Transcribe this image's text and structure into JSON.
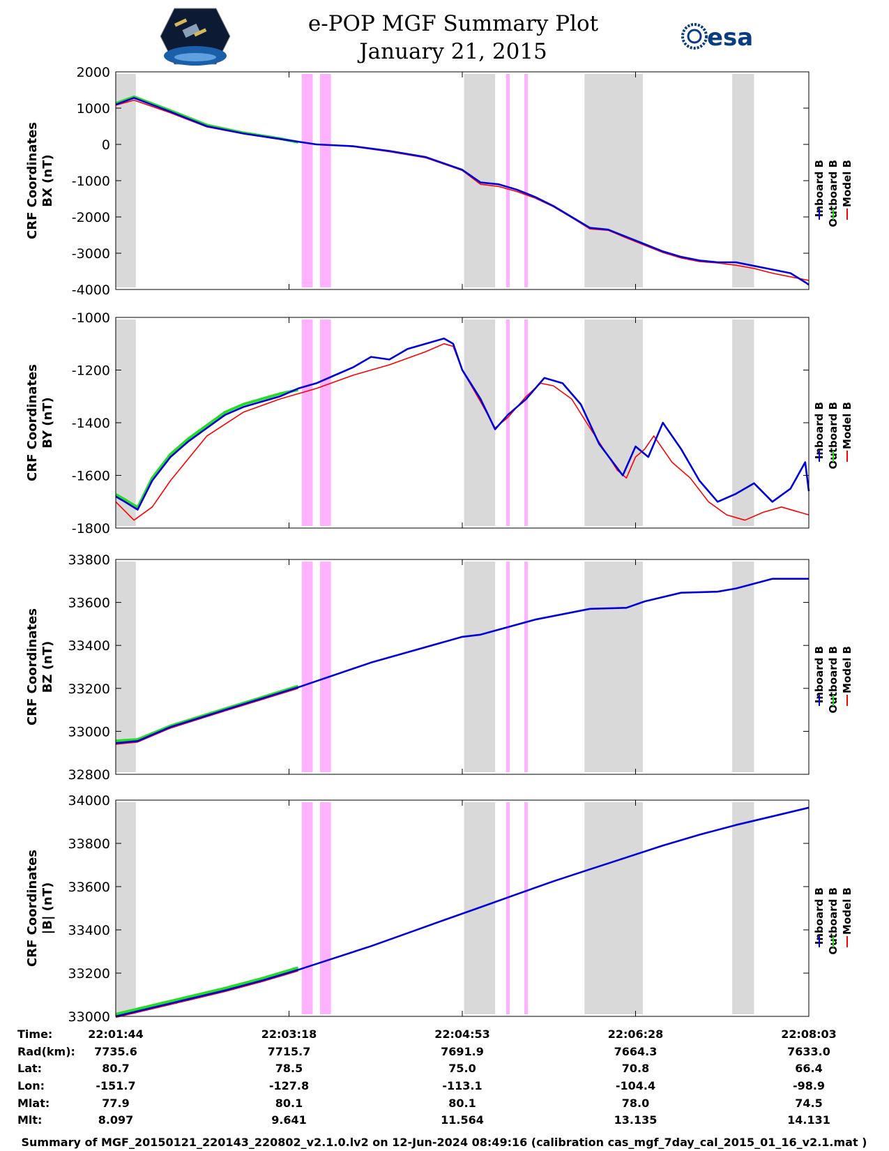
{
  "header": {
    "title": "e-POP MGF Summary Plot",
    "date": "January 21, 2015",
    "logo_left_icon": "cassiope-satellite-logo",
    "logo_right_text": "esa",
    "logo_right_icon": "esa-logo"
  },
  "colors": {
    "inboard": "#0000dd",
    "outboard": "#22dd22",
    "model": "#ff0000",
    "gray_band": "#d9d9d9",
    "pink_band": "#ffb3ff"
  },
  "legend": [
    "Inboard B",
    "Outboard B",
    "Model B"
  ],
  "chart_data": [
    {
      "type": "line",
      "ylabel_line1": "CRF Coordinates",
      "ylabel_line2": "BX (nT)",
      "ylim": [
        -4000,
        2000
      ],
      "yticks": [
        "2000",
        "1000",
        "0",
        "-1000",
        "-2000",
        "-3000",
        "-4000"
      ],
      "ytick_values": [
        2000,
        1000,
        0,
        -1000,
        -2000,
        -3000,
        -4000
      ],
      "xlim": [
        0,
        380
      ],
      "series": [
        {
          "name": "Inboard B",
          "x": [
            0,
            10,
            30,
            50,
            70,
            90,
            110,
            130,
            150,
            170,
            190,
            200,
            210,
            220,
            230,
            240,
            250,
            260,
            270,
            280,
            290,
            300,
            310,
            320,
            330,
            340,
            350,
            360,
            370,
            378,
            380
          ],
          "values": [
            1100,
            1280,
            900,
            500,
            300,
            150,
            0,
            -50,
            -180,
            -350,
            -700,
            -1050,
            -1100,
            -1250,
            -1450,
            -1700,
            -2000,
            -2300,
            -2350,
            -2550,
            -2750,
            -2950,
            -3100,
            -3200,
            -3250,
            -3250,
            -3350,
            -3450,
            -3550,
            -3800,
            -3870
          ]
        },
        {
          "name": "Outboard B",
          "x": [
            0,
            10,
            30,
            50,
            70,
            90,
            100
          ],
          "values": [
            1130,
            1310,
            930,
            530,
            320,
            160,
            60
          ]
        },
        {
          "name": "Model B",
          "x": [
            0,
            10,
            30,
            50,
            70,
            90,
            110,
            130,
            150,
            170,
            190,
            200,
            210,
            220,
            230,
            240,
            250,
            260,
            270,
            280,
            290,
            300,
            310,
            320,
            330,
            340,
            350,
            360,
            370,
            380
          ],
          "values": [
            1080,
            1220,
            870,
            480,
            290,
            140,
            10,
            -60,
            -200,
            -370,
            -720,
            -1100,
            -1160,
            -1300,
            -1480,
            -1720,
            -2020,
            -2330,
            -2370,
            -2580,
            -2780,
            -2980,
            -3130,
            -3230,
            -3270,
            -3330,
            -3420,
            -3550,
            -3650,
            -3750
          ]
        }
      ]
    },
    {
      "type": "line",
      "ylabel_line1": "CRF Coordinates",
      "ylabel_line2": "BY (nT)",
      "ylim": [
        -1800,
        -1000
      ],
      "yticks": [
        "-1000",
        "-1200",
        "-1400",
        "-1600",
        "-1800"
      ],
      "ytick_values": [
        -1000,
        -1200,
        -1400,
        -1600,
        -1800
      ],
      "xlim": [
        0,
        380
      ],
      "series": [
        {
          "name": "Inboard B",
          "x": [
            0,
            5,
            12,
            20,
            30,
            40,
            50,
            60,
            70,
            80,
            90,
            100,
            110,
            120,
            130,
            140,
            150,
            160,
            170,
            180,
            185,
            190,
            200,
            208,
            215,
            225,
            235,
            245,
            255,
            265,
            278,
            285,
            292,
            300,
            310,
            320,
            330,
            340,
            350,
            360,
            370,
            378,
            380
          ],
          "values": [
            -1680,
            -1700,
            -1730,
            -1620,
            -1530,
            -1470,
            -1420,
            -1370,
            -1340,
            -1320,
            -1300,
            -1270,
            -1250,
            -1220,
            -1190,
            -1150,
            -1160,
            -1120,
            -1100,
            -1080,
            -1100,
            -1200,
            -1310,
            -1425,
            -1370,
            -1310,
            -1230,
            -1250,
            -1330,
            -1480,
            -1600,
            -1490,
            -1530,
            -1400,
            -1500,
            -1620,
            -1700,
            -1670,
            -1630,
            -1700,
            -1650,
            -1550,
            -1660
          ]
        },
        {
          "name": "Outboard B",
          "x": [
            0,
            5,
            12,
            20,
            30,
            40,
            50,
            60,
            70,
            80,
            90,
            100
          ],
          "values": [
            -1672,
            -1692,
            -1722,
            -1610,
            -1520,
            -1460,
            -1410,
            -1360,
            -1330,
            -1310,
            -1290,
            -1275
          ]
        },
        {
          "name": "Model B",
          "x": [
            0,
            10,
            20,
            30,
            50,
            70,
            90,
            110,
            130,
            150,
            170,
            180,
            185,
            190,
            200,
            208,
            215,
            225,
            233,
            240,
            250,
            260,
            275,
            280,
            285,
            290,
            295,
            305,
            315,
            325,
            335,
            345,
            355,
            365,
            380
          ],
          "values": [
            -1700,
            -1770,
            -1720,
            -1620,
            -1450,
            -1360,
            -1310,
            -1270,
            -1220,
            -1180,
            -1130,
            -1100,
            -1110,
            -1200,
            -1320,
            -1420,
            -1380,
            -1300,
            -1250,
            -1260,
            -1310,
            -1420,
            -1580,
            -1610,
            -1530,
            -1500,
            -1450,
            -1550,
            -1610,
            -1700,
            -1750,
            -1770,
            -1740,
            -1720,
            -1750
          ]
        }
      ]
    },
    {
      "type": "line",
      "ylabel_line1": "CRF Coordinates",
      "ylabel_line2": "BZ (nT)",
      "ylim": [
        32800,
        33800
      ],
      "yticks": [
        "33800",
        "33600",
        "33400",
        "33200",
        "33000",
        "32800"
      ],
      "ytick_values": [
        33800,
        33600,
        33400,
        33200,
        33000,
        32800
      ],
      "xlim": [
        0,
        380
      ],
      "series": [
        {
          "name": "Inboard B",
          "x": [
            0,
            12,
            30,
            60,
            100,
            140,
            190,
            200,
            230,
            260,
            280,
            290,
            310,
            330,
            340,
            360,
            380
          ],
          "values": [
            32945,
            32955,
            33020,
            33100,
            33205,
            33320,
            33440,
            33450,
            33520,
            33570,
            33575,
            33605,
            33645,
            33650,
            33665,
            33710,
            33710
          ]
        },
        {
          "name": "Outboard B",
          "x": [
            0,
            12,
            30,
            60,
            100
          ],
          "values": [
            32955,
            32962,
            33025,
            33105,
            33210
          ]
        },
        {
          "name": "Model B",
          "x": [
            0,
            12,
            30,
            60,
            100
          ],
          "values": [
            32940,
            32950,
            33015,
            33095,
            33200
          ]
        }
      ]
    },
    {
      "type": "line",
      "ylabel_line1": "CRF Coordinates",
      "ylabel_line2": "|B| (nT)",
      "ylim": [
        33000,
        34000
      ],
      "yticks": [
        "34000",
        "33800",
        "33600",
        "33400",
        "33200",
        "33000"
      ],
      "ytick_values": [
        34000,
        33800,
        33600,
        33400,
        33200,
        33000
      ],
      "xlim": [
        0,
        380
      ],
      "series": [
        {
          "name": "Inboard B",
          "x": [
            0,
            20,
            40,
            60,
            80,
            100,
            120,
            140,
            160,
            180,
            200,
            220,
            240,
            260,
            280,
            300,
            320,
            340,
            360,
            380
          ],
          "values": [
            33000,
            33040,
            33080,
            33120,
            33165,
            33215,
            33270,
            33325,
            33385,
            33445,
            33505,
            33565,
            33625,
            33680,
            33735,
            33790,
            33840,
            33885,
            33925,
            33965
          ]
        },
        {
          "name": "Outboard B",
          "x": [
            0,
            20,
            40,
            60,
            80,
            100
          ],
          "values": [
            33010,
            33050,
            33090,
            33130,
            33175,
            33225
          ]
        },
        {
          "name": "Model B",
          "x": [
            0,
            20,
            40,
            60,
            80,
            100
          ],
          "values": [
            32995,
            33035,
            33075,
            33115,
            33160,
            33210
          ]
        }
      ]
    }
  ],
  "bands": {
    "gray": [
      [
        0,
        11
      ],
      [
        191,
        208
      ],
      [
        257,
        289
      ],
      [
        338,
        350
      ]
    ],
    "pink": [
      [
        102,
        108
      ],
      [
        112,
        118
      ],
      [
        214,
        216
      ],
      [
        224,
        226
      ]
    ]
  },
  "xticks": [
    0,
    95,
    190,
    285,
    380
  ],
  "info_table": {
    "row_labels": [
      "Time:",
      "Rad(km):",
      "Lat:",
      "Lon:",
      "Mlat:",
      "Mlt:"
    ],
    "columns": [
      [
        "22:01:44",
        "7735.6",
        "80.7",
        "-151.7",
        "77.9",
        "8.097"
      ],
      [
        "22:03:18",
        "7715.7",
        "78.5",
        "-127.8",
        "80.1",
        "9.641"
      ],
      [
        "22:04:53",
        "7691.9",
        "75.0",
        "-113.1",
        "80.1",
        "11.564"
      ],
      [
        "22:06:28",
        "7664.3",
        "70.8",
        "-104.4",
        "78.0",
        "13.135"
      ],
      [
        "22:08:03",
        "7633.0",
        "66.4",
        "-98.9",
        "74.5",
        "14.131"
      ]
    ]
  },
  "footer": {
    "text": "Summary of MGF_20150121_220143_220802_v2.1.0.lv2 on 12-Jun-2024 08:49:16 (calibration cas_mgf_7day_cal_2015_01_16_v2.1.mat )"
  }
}
